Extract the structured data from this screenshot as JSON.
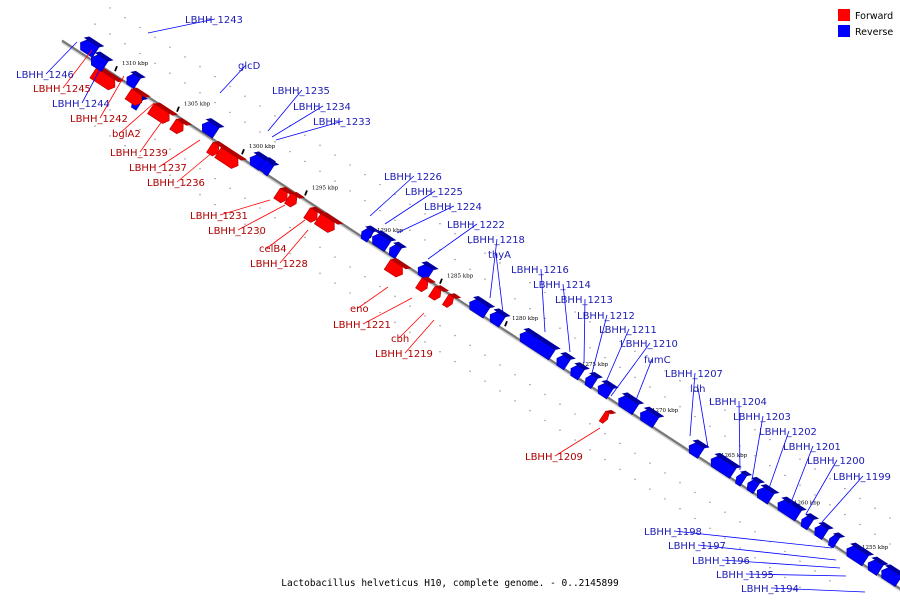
{
  "caption": "Lactobacillus helveticus H10, complete genome. - 0..2145899",
  "legend": [
    {
      "label": "Forward",
      "color": "#ff0000"
    },
    {
      "label": "Reverse",
      "color": "#0000ff"
    }
  ],
  "colors": {
    "forward": "#ff0000",
    "forward_dark": "#b00000",
    "reverse": "#0000ff",
    "reverse_dark": "#0000a0",
    "forward_label": "#b00000",
    "reverse_label": "#1c1cb4",
    "axis": "#777777"
  },
  "ticks": [
    {
      "text": "1310 kbp"
    },
    {
      "text": "1305 kbp"
    },
    {
      "text": "1300 kbp"
    },
    {
      "text": "1295 kbp"
    },
    {
      "text": "1290 kbp"
    },
    {
      "text": "1285 kbp"
    },
    {
      "text": "1280 kbp"
    },
    {
      "text": "1275 kbp"
    },
    {
      "text": "1270 kbp"
    },
    {
      "text": "1265 kbp"
    },
    {
      "text": "1260 kbp"
    },
    {
      "text": "1255 kbp"
    }
  ],
  "genes": [
    {
      "label": "LBHH_1243",
      "strand": "reverse"
    },
    {
      "label": "LBHH_1246",
      "strand": "reverse"
    },
    {
      "label": "LBHH_1245",
      "strand": "forward"
    },
    {
      "label": "LBHH_1244",
      "strand": "reverse"
    },
    {
      "label": "LBHH_1242",
      "strand": "forward"
    },
    {
      "label": "bglA2",
      "strand": "forward"
    },
    {
      "label": "glcD",
      "strand": "reverse"
    },
    {
      "label": "LBHH_1235",
      "strand": "reverse"
    },
    {
      "label": "LBHH_1234",
      "strand": "reverse"
    },
    {
      "label": "LBHH_1233",
      "strand": "reverse"
    },
    {
      "label": "LBHH_1239",
      "strand": "forward"
    },
    {
      "label": "LBHH_1237",
      "strand": "forward"
    },
    {
      "label": "LBHH_1236",
      "strand": "forward"
    },
    {
      "label": "LBHH_1226",
      "strand": "reverse"
    },
    {
      "label": "LBHH_1225",
      "strand": "reverse"
    },
    {
      "label": "LBHH_1224",
      "strand": "reverse"
    },
    {
      "label": "LBHH_1231",
      "strand": "forward"
    },
    {
      "label": "LBHH_1230",
      "strand": "forward"
    },
    {
      "label": "LBHH_1222",
      "strand": "reverse"
    },
    {
      "label": "LBHH_1218",
      "strand": "reverse"
    },
    {
      "label": "celB4",
      "strand": "forward"
    },
    {
      "label": "thyA",
      "strand": "reverse"
    },
    {
      "label": "LBHH_1228",
      "strand": "forward"
    },
    {
      "label": "LBHH_1216",
      "strand": "reverse"
    },
    {
      "label": "LBHH_1214",
      "strand": "reverse"
    },
    {
      "label": "LBHH_1213",
      "strand": "reverse"
    },
    {
      "label": "eno",
      "strand": "forward"
    },
    {
      "label": "LBHH_1212",
      "strand": "reverse"
    },
    {
      "label": "LBHH_1221",
      "strand": "forward"
    },
    {
      "label": "LBHH_1211",
      "strand": "reverse"
    },
    {
      "label": "cbh",
      "strand": "forward"
    },
    {
      "label": "LBHH_1210",
      "strand": "reverse"
    },
    {
      "label": "LBHH_1219",
      "strand": "forward"
    },
    {
      "label": "fumC",
      "strand": "reverse"
    },
    {
      "label": "LBHH_1207",
      "strand": "reverse"
    },
    {
      "label": "ldh",
      "strand": "reverse"
    },
    {
      "label": "LBHH_1204",
      "strand": "reverse"
    },
    {
      "label": "LBHH_1203",
      "strand": "reverse"
    },
    {
      "label": "LBHH_1202",
      "strand": "reverse"
    },
    {
      "label": "LBHH_1201",
      "strand": "reverse"
    },
    {
      "label": "LBHH_1200",
      "strand": "reverse"
    },
    {
      "label": "LBHH_1209",
      "strand": "forward"
    },
    {
      "label": "LBHH_1199",
      "strand": "reverse"
    },
    {
      "label": "LBHH_1198",
      "strand": "reverse"
    },
    {
      "label": "LBHH_1197",
      "strand": "reverse"
    },
    {
      "label": "LBHH_1196",
      "strand": "reverse"
    },
    {
      "label": "LBHH_1195",
      "strand": "reverse"
    },
    {
      "label": "LBHH_1194",
      "strand": "reverse"
    }
  ]
}
